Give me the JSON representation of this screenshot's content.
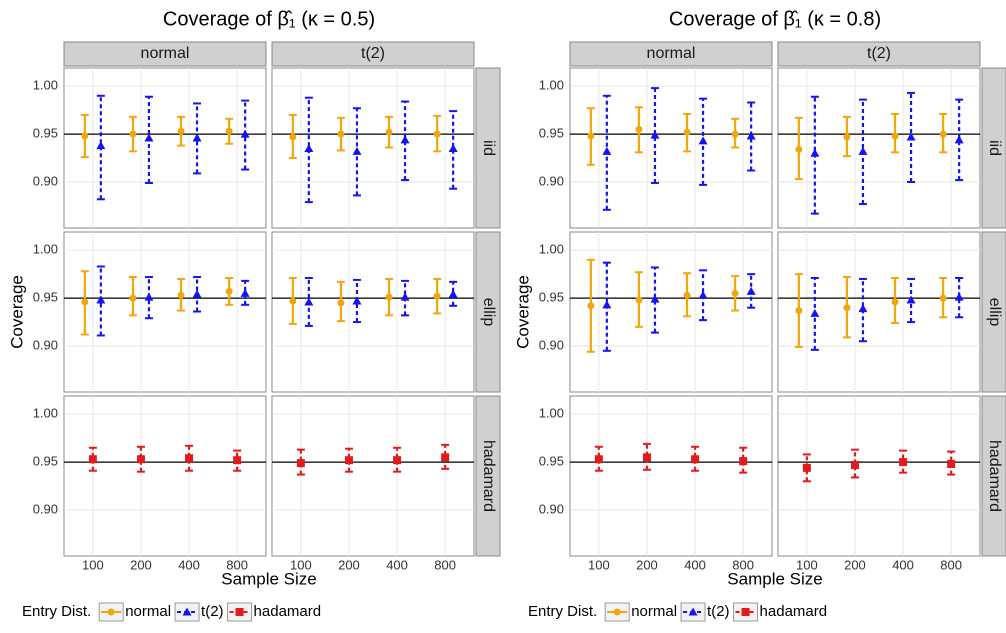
{
  "chart_data": [
    {
      "type": "errorbar",
      "title": "Coverage of β̂₁ (κ = 0.5)",
      "x_label": "Sample Size",
      "y_label": "Coverage",
      "facet_cols": [
        "normal",
        "t(2)"
      ],
      "facet_rows": [
        "iid",
        "ellip",
        "hadamard"
      ],
      "categories": [
        "100",
        "200",
        "400",
        "800"
      ],
      "ylim": [
        0.852,
        1.019
      ],
      "yticks": [
        {
          "value": 1,
          "label": "1.00"
        },
        0.95,
        {
          "value": 0.9,
          "label": "0.90"
        }
      ],
      "hline": 0.95,
      "grid": true,
      "legend_title": "Entry Dist.",
      "legend": "bottom",
      "series": [
        {
          "name": "normal",
          "color": "#f2a60d",
          "marker": "circle",
          "dashed": false,
          "values": [
            [
              [
                0.948,
                0.95,
                0.953,
                0.953
              ],
              [
                0.947,
                0.95,
                0.952,
                0.95
              ]
            ],
            [
              [
                0.946,
                0.95,
                0.953,
                0.957
              ],
              [
                0.947,
                0.945,
                0.951,
                0.952
              ]
            ],
            null
          ],
          "lower": [
            [
              [
                0.926,
                0.932,
                0.938,
                0.94
              ],
              [
                0.925,
                0.933,
                0.936,
                0.932
              ]
            ],
            [
              [
                0.912,
                0.932,
                0.937,
                0.943
              ],
              [
                0.923,
                0.926,
                0.932,
                0.934
              ]
            ],
            null
          ],
          "upper": [
            [
              [
                0.97,
                0.968,
                0.968,
                0.966
              ],
              [
                0.97,
                0.967,
                0.968,
                0.969
              ]
            ],
            [
              [
                0.978,
                0.972,
                0.97,
                0.971
              ],
              [
                0.971,
                0.967,
                0.97,
                0.97
              ]
            ],
            null
          ]
        },
        {
          "name": "t(2)",
          "color": "#1414f0",
          "marker": "triangle",
          "dashed": true,
          "values": [
            [
              [
                0.938,
                0.946,
                0.946,
                0.95
              ],
              [
                0.935,
                0.932,
                0.944,
                0.935
              ]
            ],
            [
              [
                0.948,
                0.951,
                0.954,
                0.955
              ],
              [
                0.946,
                0.947,
                0.951,
                0.954
              ]
            ],
            null
          ],
          "lower": [
            [
              [
                0.882,
                0.899,
                0.909,
                0.913
              ],
              [
                0.879,
                0.886,
                0.902,
                0.893
              ]
            ],
            [
              [
                0.911,
                0.929,
                0.936,
                0.943
              ],
              [
                0.921,
                0.925,
                0.932,
                0.942
              ]
            ],
            null
          ],
          "upper": [
            [
              [
                0.99,
                0.989,
                0.982,
                0.985
              ],
              [
                0.988,
                0.977,
                0.984,
                0.974
              ]
            ],
            [
              [
                0.983,
                0.972,
                0.972,
                0.968
              ],
              [
                0.971,
                0.969,
                0.968,
                0.967
              ]
            ],
            null
          ]
        },
        {
          "name": "hadamard",
          "color": "#e31a1c",
          "marker": "square",
          "dashed": true,
          "values": [
            null,
            null,
            [
              [
                0.953,
                0.953,
                0.954,
                0.952
              ],
              [
                0.949,
                0.952,
                0.952,
                0.955
              ]
            ]
          ],
          "lower": [
            null,
            null,
            [
              [
                0.941,
                0.94,
                0.941,
                0.941
              ],
              [
                0.937,
                0.94,
                0.94,
                0.943
              ]
            ]
          ],
          "upper": [
            null,
            null,
            [
              [
                0.965,
                0.966,
                0.967,
                0.962
              ],
              [
                0.963,
                0.964,
                0.965,
                0.968
              ]
            ]
          ]
        }
      ]
    },
    {
      "type": "errorbar",
      "title": "Coverage of β̂₁ (κ = 0.8)",
      "x_label": "Sample Size",
      "y_label": "Coverage",
      "facet_cols": [
        "normal",
        "t(2)"
      ],
      "facet_rows": [
        "iid",
        "ellip",
        "hadamard"
      ],
      "categories": [
        "100",
        "200",
        "400",
        "800"
      ],
      "ylim": [
        0.852,
        1.019
      ],
      "yticks": [
        {
          "value": 1,
          "label": "1.00"
        },
        0.95,
        {
          "value": 0.9,
          "label": "0.90"
        }
      ],
      "hline": 0.95,
      "grid": true,
      "legend_title": "Entry Dist.",
      "legend": "bottom",
      "series": [
        {
          "name": "normal",
          "color": "#f2a60d",
          "marker": "circle",
          "dashed": false,
          "values": [
            [
              [
                0.948,
                0.955,
                0.952,
                0.95
              ],
              [
                0.934,
                0.947,
                0.948,
                0.95
              ]
            ],
            [
              [
                0.942,
                0.948,
                0.953,
                0.955
              ],
              [
                0.937,
                0.94,
                0.946,
                0.95
              ]
            ],
            null
          ],
          "lower": [
            [
              [
                0.918,
                0.931,
                0.932,
                0.936
              ],
              [
                0.903,
                0.927,
                0.931,
                0.931
              ]
            ],
            [
              [
                0.894,
                0.92,
                0.931,
                0.937
              ],
              [
                0.899,
                0.909,
                0.924,
                0.93
              ]
            ],
            null
          ],
          "upper": [
            [
              [
                0.977,
                0.978,
                0.971,
                0.966
              ],
              [
                0.967,
                0.968,
                0.971,
                0.971
              ]
            ],
            [
              [
                0.99,
                0.977,
                0.976,
                0.973
              ],
              [
                0.975,
                0.972,
                0.971,
                0.971
              ]
            ],
            null
          ]
        },
        {
          "name": "t(2)",
          "color": "#1414f0",
          "marker": "triangle",
          "dashed": true,
          "values": [
            [
              [
                0.932,
                0.949,
                0.943,
                0.948
              ],
              [
                0.93,
                0.932,
                0.947,
                0.944
              ]
            ],
            [
              [
                0.943,
                0.949,
                0.953,
                0.957
              ],
              [
                0.934,
                0.939,
                0.948,
                0.951
              ]
            ],
            null
          ],
          "lower": [
            [
              [
                0.871,
                0.899,
                0.897,
                0.912
              ],
              [
                0.867,
                0.877,
                0.9,
                0.902
              ]
            ],
            [
              [
                0.895,
                0.914,
                0.927,
                0.94
              ],
              [
                0.896,
                0.905,
                0.925,
                0.93
              ]
            ],
            null
          ],
          "upper": [
            [
              [
                0.99,
                0.998,
                0.987,
                0.983
              ],
              [
                0.989,
                0.986,
                0.993,
                0.986
              ]
            ],
            [
              [
                0.987,
                0.982,
                0.979,
                0.975
              ],
              [
                0.971,
                0.97,
                0.97,
                0.971
              ]
            ],
            null
          ]
        },
        {
          "name": "hadamard",
          "color": "#e31a1c",
          "marker": "square",
          "dashed": true,
          "values": [
            null,
            null,
            [
              [
                0.953,
                0.955,
                0.953,
                0.951
              ],
              [
                0.944,
                0.947,
                0.95,
                0.948
              ]
            ]
          ],
          "lower": [
            null,
            null,
            [
              [
                0.941,
                0.942,
                0.941,
                0.939
              ],
              [
                0.93,
                0.934,
                0.939,
                0.937
              ]
            ]
          ],
          "upper": [
            null,
            null,
            [
              [
                0.966,
                0.969,
                0.966,
                0.965
              ],
              [
                0.958,
                0.963,
                0.962,
                0.961
              ]
            ]
          ]
        }
      ]
    }
  ]
}
